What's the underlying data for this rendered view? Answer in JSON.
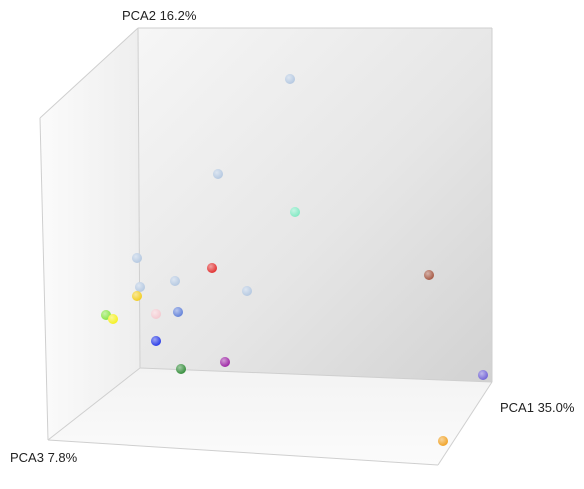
{
  "chart_data": {
    "type": "scatter",
    "projection": "3d",
    "axes": {
      "x_label": "PCA1 35.0%",
      "y_label": "PCA2 16.2%",
      "z_label": "PCA3 7.8%"
    },
    "grid": false,
    "legend": "none",
    "points": [
      {
        "color": "#b3c7e0"
      },
      {
        "color": "#b3c7e0"
      },
      {
        "color": "#7ee8c1"
      },
      {
        "color": "#a3543f"
      },
      {
        "color": "#e02a2a"
      },
      {
        "color": "#b3c7e0"
      },
      {
        "color": "#b3c7e0"
      },
      {
        "color": "#b3c7e0"
      },
      {
        "color": "#b3c7e0"
      },
      {
        "color": "#f2cc1b"
      },
      {
        "color": "#5f7fd8"
      },
      {
        "color": "#f3c8cf"
      },
      {
        "color": "#84e33f"
      },
      {
        "color": "#f4f01a"
      },
      {
        "color": "#2235e6"
      },
      {
        "color": "#9a1fa2"
      },
      {
        "color": "#2e8a35"
      },
      {
        "color": "#6e5fd5"
      },
      {
        "color": "#f0a020"
      }
    ]
  }
}
